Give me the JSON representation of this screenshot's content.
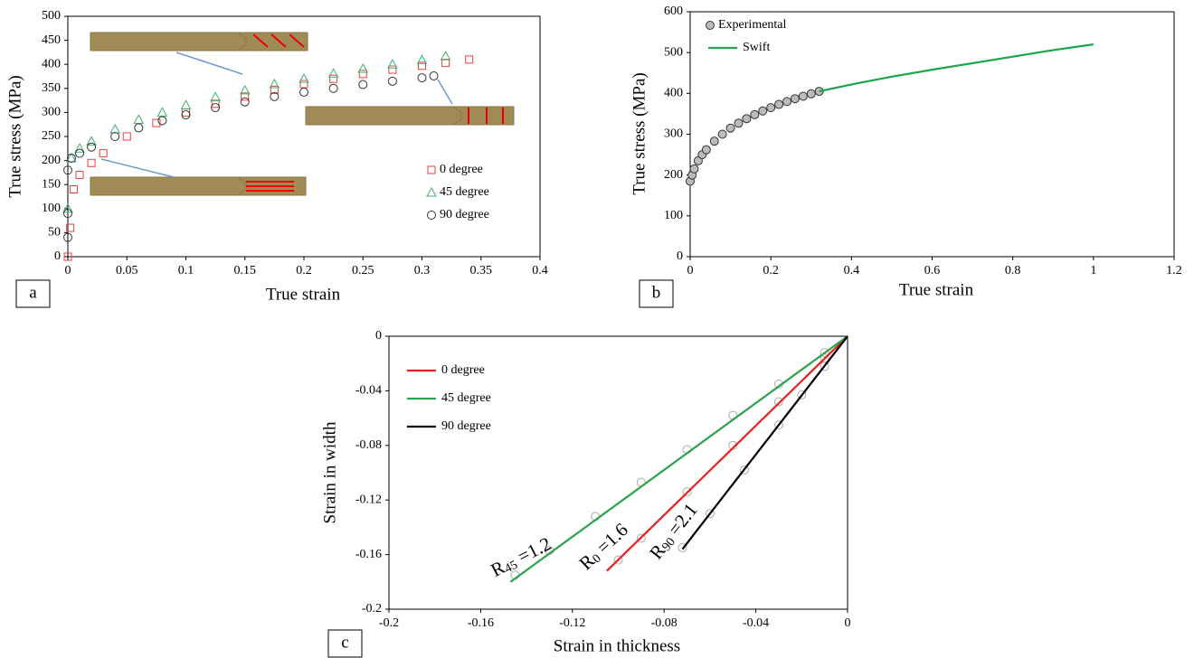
{
  "chart_data": [
    {
      "type": "scatter",
      "panel_label": "a",
      "xlabel": "True strain",
      "ylabel": "True stress (MPa)",
      "xlim": [
        0,
        0.4
      ],
      "xticks": [
        0,
        0.05,
        0.1,
        0.15,
        0.2,
        0.25,
        0.3,
        0.35,
        0.4
      ],
      "ylim": [
        0,
        500
      ],
      "yticks": [
        0,
        50,
        100,
        150,
        200,
        250,
        300,
        350,
        400,
        450,
        500
      ],
      "legend": "lower right",
      "series": [
        {
          "name": "0 degree",
          "color": "#e8413c",
          "marker": "square",
          "x": [
            0,
            0.002,
            0.005,
            0.01,
            0.02,
            0.03,
            0.05,
            0.075,
            0.1,
            0.125,
            0.15,
            0.175,
            0.2,
            0.225,
            0.25,
            0.275,
            0.3,
            0.32,
            0.34
          ],
          "values": [
            0,
            60,
            140,
            170,
            195,
            215,
            250,
            278,
            300,
            318,
            333,
            347,
            359,
            370,
            380,
            389,
            397,
            403,
            410
          ]
        },
        {
          "name": "45 degree",
          "color": "#3cb371",
          "marker": "triangle",
          "x": [
            0,
            0.003,
            0.01,
            0.02,
            0.04,
            0.06,
            0.08,
            0.1,
            0.125,
            0.15,
            0.175,
            0.2,
            0.225,
            0.25,
            0.275,
            0.3,
            0.32
          ],
          "values": [
            100,
            205,
            225,
            240,
            265,
            285,
            300,
            315,
            332,
            346,
            359,
            370,
            381,
            391,
            400,
            409,
            417
          ]
        },
        {
          "name": "90 degree",
          "color": "#333333",
          "marker": "circle",
          "x": [
            0,
            0,
            0,
            0.003,
            0.01,
            0.02,
            0.04,
            0.06,
            0.08,
            0.1,
            0.125,
            0.15,
            0.175,
            0.2,
            0.225,
            0.25,
            0.275,
            0.3,
            0.31
          ],
          "values": [
            40,
            90,
            180,
            205,
            215,
            228,
            250,
            268,
            283,
            295,
            310,
            322,
            333,
            342,
            350,
            358,
            365,
            372,
            376
          ]
        }
      ]
    },
    {
      "type": "scatter",
      "panel_label": "b",
      "xlabel": "True strain",
      "ylabel": "True stress (MPa)",
      "xlim": [
        0,
        1.2
      ],
      "xticks": [
        0,
        0.2,
        0.4,
        0.6,
        0.8,
        1,
        1.2
      ],
      "ylim": [
        0,
        600
      ],
      "yticks": [
        0,
        100,
        200,
        300,
        400,
        500,
        600
      ],
      "legend": "upper left",
      "series": [
        {
          "name": "Experimental",
          "color": "#bbbbbb",
          "marker": "filled-circle",
          "x": [
            0,
            0.005,
            0.01,
            0.02,
            0.03,
            0.04,
            0.06,
            0.08,
            0.1,
            0.12,
            0.14,
            0.16,
            0.18,
            0.2,
            0.22,
            0.24,
            0.26,
            0.28,
            0.3,
            0.32
          ],
          "values": [
            185,
            200,
            215,
            235,
            250,
            262,
            283,
            300,
            315,
            327,
            338,
            348,
            357,
            365,
            373,
            380,
            387,
            393,
            399,
            405
          ]
        },
        {
          "name": "Swift",
          "color": "#1aa64a",
          "x": [
            0.32,
            0.4,
            0.5,
            0.6,
            0.7,
            0.8,
            0.9,
            1
          ],
          "values": [
            405,
            422,
            441,
            458,
            474,
            490,
            506,
            520
          ]
        }
      ]
    },
    {
      "type": "line",
      "panel_label": "c",
      "xlabel": "Strain in thickness",
      "ylabel": "Strain in width",
      "xlim": [
        -0.2,
        0
      ],
      "xticks": [
        -0.2,
        -0.16,
        -0.12,
        -0.08,
        -0.04,
        0
      ],
      "ylim": [
        -0.2,
        0
      ],
      "yticks": [
        -0.2,
        -0.16,
        -0.12,
        -0.08,
        -0.04,
        0
      ],
      "legend": "upper left",
      "series": [
        {
          "color": "#aaaaaa",
          "marker": "circle",
          "x": [
            -0.01,
            -0.03,
            -0.05,
            -0.07,
            -0.09,
            -0.11,
            -0.13,
            -0.145,
            -0.01,
            -0.03,
            -0.05,
            -0.07,
            -0.09,
            -0.1,
            -0.01,
            -0.02,
            -0.03,
            -0.045,
            -0.06,
            -0.072
          ],
          "values": [
            -0.012,
            -0.035,
            -0.058,
            -0.083,
            -0.107,
            -0.132,
            -0.157,
            -0.175,
            -0.016,
            -0.048,
            -0.08,
            -0.114,
            -0.148,
            -0.164,
            -0.022,
            -0.043,
            -0.065,
            -0.098,
            -0.13,
            -0.155
          ]
        },
        {
          "name": "0 degree",
          "color": "#e8201e",
          "x": [
            0,
            -0.105
          ],
          "values": [
            0,
            -0.172
          ]
        },
        {
          "name": "45 degree",
          "color": "#2ca24a",
          "x": [
            0,
            -0.147
          ],
          "values": [
            0,
            -0.18
          ]
        },
        {
          "name": "90 degree",
          "color": "#000000",
          "x": [
            0,
            -0.072
          ],
          "values": [
            0,
            -0.156
          ]
        }
      ],
      "annotations": [
        {
          "base": "R",
          "subscript": "45",
          "text": " =1.2"
        },
        {
          "base": "R",
          "subscript": "0",
          "text": " =1.6"
        },
        {
          "base": "R",
          "subscript": "90",
          "text": " =2.1"
        }
      ]
    }
  ]
}
